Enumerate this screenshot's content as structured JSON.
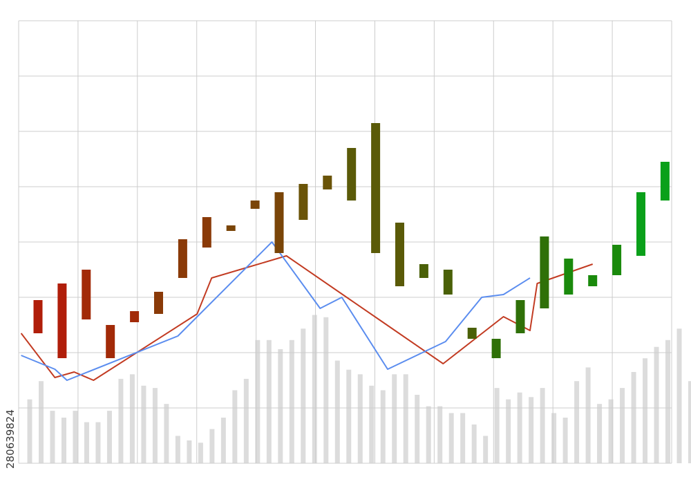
{
  "watermark": "280639824",
  "chart_data": {
    "type": "candlestick",
    "title": "",
    "xlabel": "",
    "ylabel": "",
    "grid": true,
    "x_count": 27,
    "ylim": [
      0,
      8
    ],
    "candles": [
      {
        "low": 2.35,
        "high": 2.95
      },
      {
        "low": 1.9,
        "high": 3.25
      },
      {
        "low": 2.6,
        "high": 3.5
      },
      {
        "low": 1.9,
        "high": 2.5
      },
      {
        "low": 2.55,
        "high": 2.75
      },
      {
        "low": 2.7,
        "high": 3.1
      },
      {
        "low": 3.35,
        "high": 4.05
      },
      {
        "low": 3.9,
        "high": 4.45
      },
      {
        "low": 4.2,
        "high": 4.3
      },
      {
        "low": 4.6,
        "high": 4.75
      },
      {
        "low": 3.8,
        "high": 4.9
      },
      {
        "low": 4.4,
        "high": 5.05
      },
      {
        "low": 4.95,
        "high": 5.2
      },
      {
        "low": 4.75,
        "high": 5.7
      },
      {
        "low": 3.8,
        "high": 6.15
      },
      {
        "low": 3.2,
        "high": 4.35
      },
      {
        "low": 3.35,
        "high": 3.6
      },
      {
        "low": 3.05,
        "high": 3.5
      },
      {
        "low": 2.25,
        "high": 2.45
      },
      {
        "low": 1.9,
        "high": 2.25
      },
      {
        "low": 2.35,
        "high": 2.95
      },
      {
        "low": 2.8,
        "high": 4.1
      },
      {
        "low": 3.05,
        "high": 3.7
      },
      {
        "low": 3.2,
        "high": 3.4
      },
      {
        "low": 3.4,
        "high": 3.95
      },
      {
        "low": 3.75,
        "high": 4.9
      },
      {
        "low": 4.75,
        "high": 5.45
      }
    ],
    "volume": [
      28,
      36,
      23,
      20,
      23,
      18,
      18,
      23,
      37,
      39,
      34,
      33,
      26,
      12,
      10,
      9,
      15,
      20,
      32,
      37,
      54,
      54,
      50,
      54,
      59,
      65,
      64,
      45,
      41,
      39,
      34,
      32,
      39,
      39,
      30,
      25,
      25,
      22,
      22,
      17,
      12,
      33,
      28,
      31,
      29,
      33,
      22,
      20,
      36,
      42,
      26,
      28,
      33,
      40,
      46,
      51,
      54,
      59,
      36
    ],
    "series": [
      {
        "color": "#c23b22",
        "points": [
          [
            -0.7,
            2.35
          ],
          [
            0.7,
            1.55
          ],
          [
            1.5,
            1.65
          ],
          [
            2.3,
            1.5
          ],
          [
            6.6,
            2.7
          ],
          [
            7.2,
            3.35
          ],
          [
            10.3,
            3.75
          ],
          [
            14.3,
            2.55
          ],
          [
            16.8,
            1.8
          ],
          [
            19.3,
            2.65
          ],
          [
            20.4,
            2.4
          ],
          [
            20.7,
            3.25
          ],
          [
            23,
            3.6
          ]
        ]
      },
      {
        "color": "#5b8def",
        "points": [
          [
            -0.7,
            1.95
          ],
          [
            0.7,
            1.7
          ],
          [
            1.2,
            1.5
          ],
          [
            5.8,
            2.3
          ],
          [
            9.7,
            4.0
          ],
          [
            11.7,
            2.8
          ],
          [
            12.6,
            3.0
          ],
          [
            14.5,
            1.7
          ],
          [
            16.9,
            2.2
          ],
          [
            18.4,
            3.0
          ],
          [
            19.3,
            3.05
          ],
          [
            20.4,
            3.35
          ]
        ]
      }
    ],
    "candle_colors": [
      "#b01e0a",
      "#a22a08",
      "#8a3a08",
      "#7a4508",
      "#6a5408",
      "#5a5a08",
      "#4a6008",
      "#2f7008",
      "#1a8a0c",
      "#0aa01a"
    ]
  }
}
